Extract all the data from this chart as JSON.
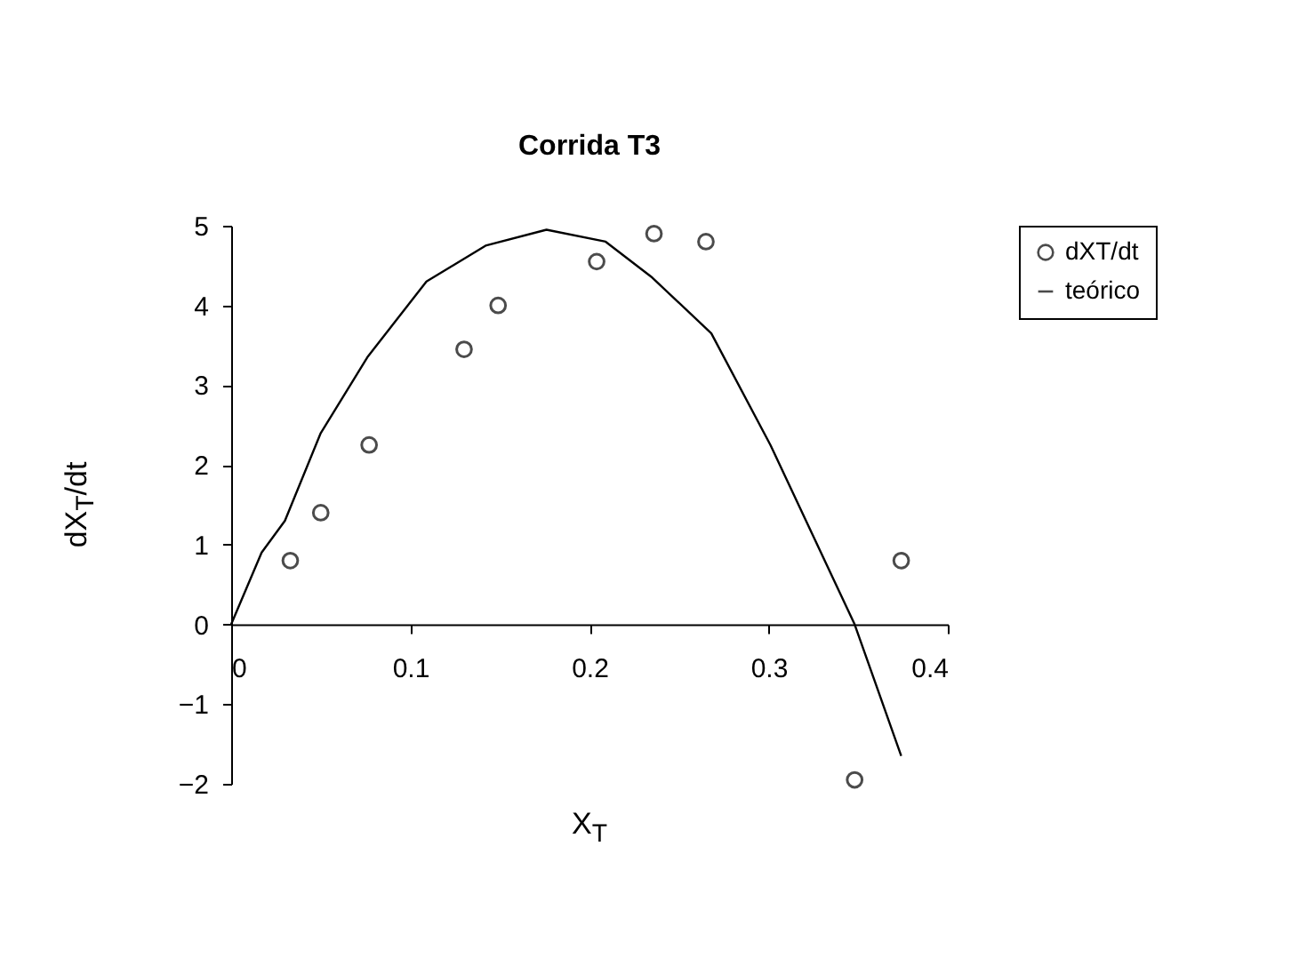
{
  "chart_data": {
    "type": "scatter",
    "title": "Corrida T3",
    "xlabel": "X$_{T}$",
    "ylabel": "dX$_{T}$/dt",
    "xlim": [
      0,
      0.4
    ],
    "xticks": [
      0,
      0.1,
      0.2,
      0.3,
      0.4
    ],
    "ylim": [
      -2,
      5
    ],
    "yticks": [
      -2,
      -1,
      0,
      1,
      2,
      3,
      4,
      5
    ],
    "grid": false,
    "legend": "right",
    "marker": "circle",
    "series": [
      {
        "name": "dXT/dt",
        "color": "#000000",
        "x": [
          0.033,
          0.05,
          0.077,
          0.13,
          0.149,
          0.204,
          0.236,
          0.265,
          0.348,
          0.374
        ],
        "values": [
          0.8,
          1.4,
          2.25,
          3.45,
          4.0,
          4.55,
          4.9,
          4.8,
          -1.95,
          0.8
        ]
      },
      {
        "name": "teórico",
        "type": "line",
        "marker": "none",
        "line_style": "solid",
        "color": "#000000",
        "x": [
          0,
          0.017,
          0.03,
          0.05,
          0.076,
          0.109,
          0.142,
          0.176,
          0.209,
          0.235,
          0.268,
          0.301,
          0.348,
          0.374
        ],
        "values": [
          0,
          0.9,
          1.3,
          2.4,
          3.35,
          4.3,
          4.75,
          4.95,
          4.8,
          4.35,
          3.65,
          2.25,
          0,
          -1.65
        ]
      }
    ]
  }
}
